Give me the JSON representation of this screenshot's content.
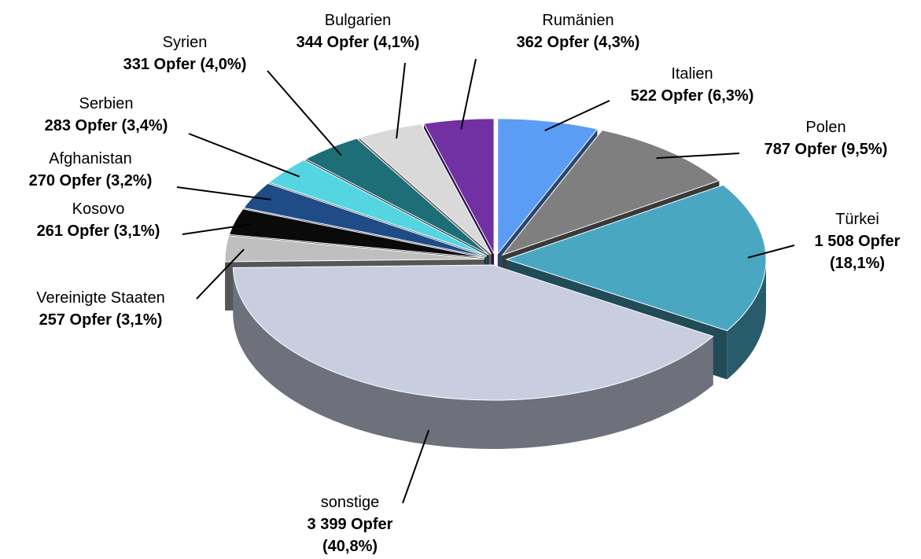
{
  "chart_data": {
    "type": "pie",
    "categories": [
      "Italien",
      "Polen",
      "Türkei",
      "sonstige",
      "Vereinigte Staaten",
      "Kosovo",
      "Afghanistan",
      "Serbien",
      "Syrien",
      "Bulgarien",
      "Rumänien"
    ],
    "values": [
      522,
      787,
      1508,
      3399,
      257,
      261,
      270,
      283,
      331,
      344,
      362
    ],
    "value_labels": [
      "522 Opfer (6,3%)",
      "787 Opfer (9,5%)",
      "1 508 Opfer (18,1%)",
      "3 399 Opfer (40,8%)",
      "257 Opfer (3,1%)",
      "261 Opfer (3,1%)",
      "270 Opfer (3,2%)",
      "283 Opfer (3,4%)",
      "331 Opfer (4,0%)",
      "344 Opfer (4,1%)",
      "362 Opfer (4,3%)"
    ],
    "colors": [
      "#5b9cf4",
      "#7f7f7f",
      "#4aa7c2",
      "#c8cee0",
      "#bfbfbf",
      "#0a0a0a",
      "#1f4b86",
      "#55d5e2",
      "#1e6e78",
      "#d9d9d9",
      "#7131a3"
    ]
  }
}
